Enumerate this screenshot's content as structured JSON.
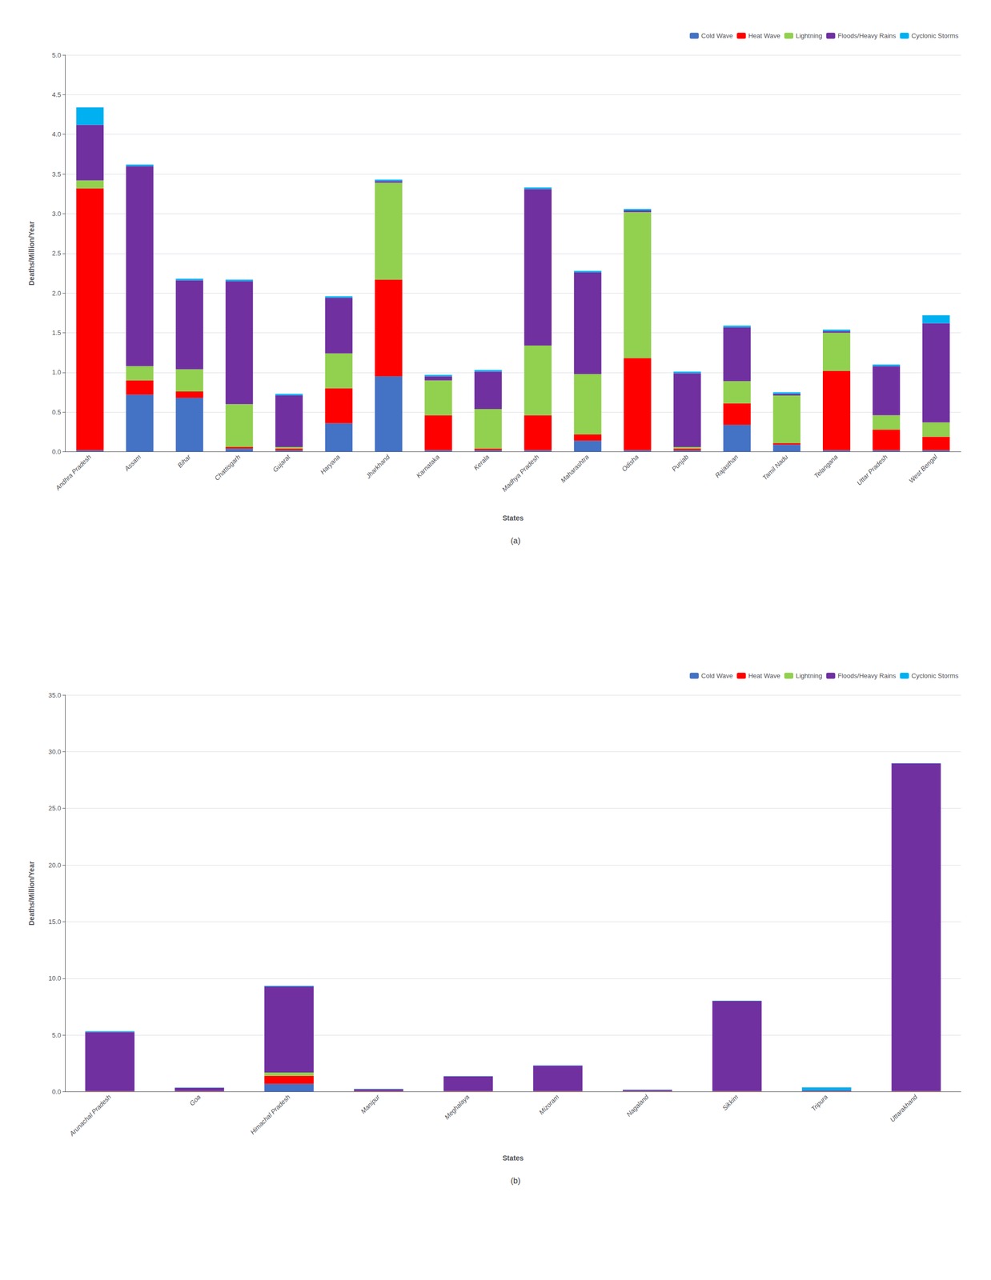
{
  "chart_data": [
    {
      "type": "bar",
      "title": "(a)",
      "stacked": true,
      "grid": true,
      "legend": "upper right",
      "xlabel": "States",
      "ylabel": "Deaths/Million/Year",
      "categories": [
        "Andhra Pradesh",
        "Assam",
        "Bihar",
        "Chattisgarh",
        "Gujarat",
        "Haryana",
        "Jharkhand",
        "Karnataka",
        "Kerala",
        "Madhya Pradesh",
        "Maharashtra",
        "Odisha",
        "Punjab",
        "Rajasthan",
        "Tamil Nadu",
        "Telangana",
        "Uttar Pradesh",
        "West Bengal"
      ],
      "series": [
        {
          "name": "Cold Wave",
          "color": "#4472C4",
          "values": [
            0.02,
            0.72,
            0.68,
            0.04,
            0.02,
            0.36,
            0.95,
            0.02,
            0.02,
            0.02,
            0.14,
            0.02,
            0.02,
            0.34,
            0.09,
            0.02,
            0.02,
            0.02
          ]
        },
        {
          "name": "Heat Wave",
          "color": "#FF0000",
          "values": [
            3.3,
            0.18,
            0.08,
            0.02,
            0.02,
            0.44,
            1.22,
            0.44,
            0.02,
            0.44,
            0.08,
            1.16,
            0.02,
            0.27,
            0.02,
            1.0,
            0.26,
            0.17
          ]
        },
        {
          "name": "Lightning",
          "color": "#92D050",
          "values": [
            0.1,
            0.18,
            0.28,
            0.54,
            0.02,
            0.44,
            1.22,
            0.44,
            0.5,
            0.88,
            0.76,
            1.84,
            0.02,
            0.28,
            0.6,
            0.48,
            0.18,
            0.18
          ]
        },
        {
          "name": "Floods/Heavy Rains",
          "color": "#7030A0",
          "values": [
            0.7,
            2.52,
            1.12,
            1.55,
            0.65,
            0.7,
            0.02,
            0.05,
            0.47,
            1.97,
            1.28,
            0.02,
            0.93,
            0.68,
            0.02,
            0.02,
            0.62,
            1.25
          ]
        },
        {
          "name": "Cyclonic Storms",
          "color": "#00B0F0",
          "values": [
            0.22,
            0.02,
            0.02,
            0.02,
            0.02,
            0.02,
            0.02,
            0.02,
            0.02,
            0.02,
            0.02,
            0.02,
            0.02,
            0.02,
            0.02,
            0.02,
            0.02,
            0.1
          ]
        }
      ],
      "ylim": [
        0,
        5.0
      ],
      "yticks": [
        {
          "value": 0.0,
          "label": "0.0"
        },
        0.5,
        {
          "value": 1.0,
          "label": "1.0"
        },
        1.5,
        {
          "value": 2.0,
          "label": "2.0"
        },
        2.5,
        {
          "value": 3.0,
          "label": "3.0"
        },
        3.5,
        {
          "value": 4.0,
          "label": "4.0"
        },
        4.5,
        {
          "value": 5.0,
          "label": "5.0"
        }
      ]
    },
    {
      "type": "bar",
      "title": "(b)",
      "stacked": true,
      "grid": true,
      "legend": "upper right",
      "xlabel": "States",
      "ylabel": "Deaths/Million/Year",
      "categories": [
        "Arunachal Pradesh",
        "Goa",
        "Himachal Pradesh",
        "Manipur",
        "Meghalaya",
        "Mizoram",
        "Nagaland",
        "Sikkim",
        "Tripura",
        "Uttarakhand"
      ],
      "series": [
        {
          "name": "Cold Wave",
          "color": "#4472C4",
          "values": [
            0.02,
            0.02,
            0.7,
            0.02,
            0.02,
            0.02,
            0.02,
            0.02,
            0.02,
            0.02
          ]
        },
        {
          "name": "Heat Wave",
          "color": "#FF0000",
          "values": [
            0.02,
            0.02,
            0.7,
            0.02,
            0.02,
            0.02,
            0.02,
            0.02,
            0.02,
            0.02
          ]
        },
        {
          "name": "Lightning",
          "color": "#92D050",
          "values": [
            0.02,
            0.02,
            0.3,
            0.02,
            0.02,
            0.02,
            0.02,
            0.02,
            0.02,
            0.02
          ]
        },
        {
          "name": "Floods/Heavy Rains",
          "color": "#7030A0",
          "values": [
            5.2,
            0.3,
            7.6,
            0.18,
            1.3,
            2.25,
            0.1,
            7.95,
            0.05,
            28.9
          ]
        },
        {
          "name": "Cyclonic Storms",
          "color": "#00B0F0",
          "values": [
            0.08,
            0.02,
            0.05,
            0.02,
            0.02,
            0.02,
            0.02,
            0.02,
            0.28,
            0.02
          ]
        }
      ],
      "ylim": [
        0,
        35.0
      ],
      "yticks": [
        {
          "value": 0.0,
          "label": "0.0"
        },
        {
          "value": 5.0,
          "label": "5.0"
        },
        {
          "value": 10.0,
          "label": "10.0"
        },
        {
          "value": 15.0,
          "label": "15.0"
        },
        {
          "value": 20.0,
          "label": "20.0"
        },
        {
          "value": 25.0,
          "label": "25.0"
        },
        {
          "value": 30.0,
          "label": "30.0"
        },
        {
          "value": 35.0,
          "label": "35.0"
        }
      ]
    }
  ]
}
